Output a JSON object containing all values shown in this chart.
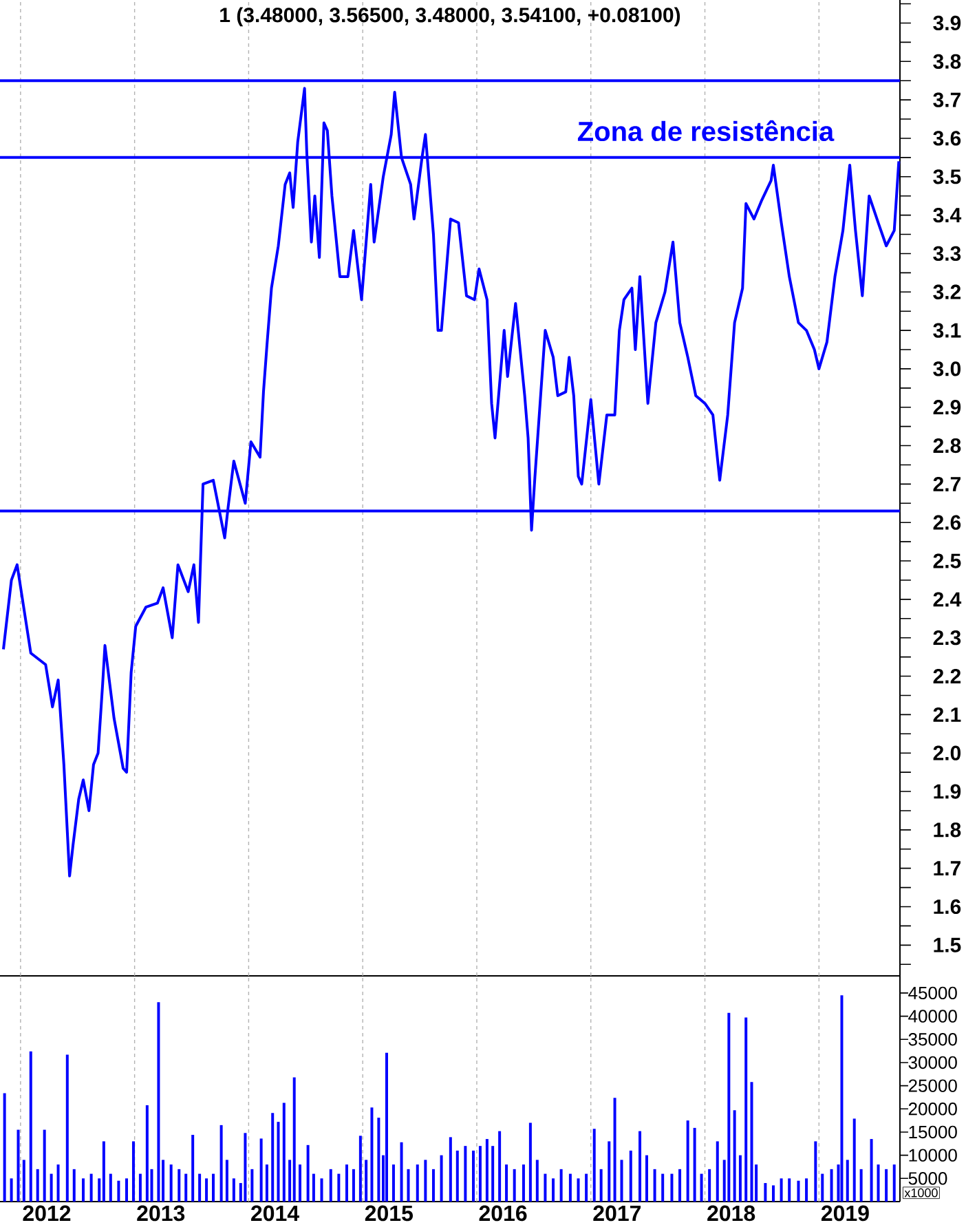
{
  "chart_data": [
    {
      "type": "line",
      "title": "1 (3.48000, 3.56500, 3.48000, 3.54100, +0.08100)",
      "x": [
        2011.85,
        2011.92,
        2011.97,
        2012.09,
        2012.22,
        2012.28,
        2012.33,
        2012.38,
        2012.43,
        2012.46,
        2012.51,
        2012.55,
        2012.6,
        2012.64,
        2012.68,
        2012.72,
        2012.74,
        2012.82,
        2012.9,
        2012.93,
        2012.97,
        2013.01,
        2013.1,
        2013.2,
        2013.25,
        2013.33,
        2013.38,
        2013.47,
        2013.52,
        2013.56,
        2013.6,
        2013.69,
        2013.79,
        2013.82,
        2013.87,
        2013.97,
        2014.02,
        2014.1,
        2014.13,
        2014.16,
        2014.2,
        2014.26,
        2014.32,
        2014.36,
        2014.39,
        2014.43,
        2014.49,
        2014.51,
        2014.55,
        2014.58,
        2014.62,
        2014.66,
        2014.69,
        2014.73,
        2014.8,
        2014.87,
        2014.92,
        2014.99,
        2015.07,
        2015.1,
        2015.18,
        2015.25,
        2015.28,
        2015.34,
        2015.42,
        2015.45,
        2015.52,
        2015.55,
        2015.62,
        2015.66,
        2015.69,
        2015.77,
        2015.84,
        2015.91,
        2015.98,
        2016.02,
        2016.09,
        2016.13,
        2016.16,
        2016.24,
        2016.27,
        2016.34,
        2016.42,
        2016.45,
        2016.48,
        2016.51,
        2016.6,
        2016.67,
        2016.71,
        2016.78,
        2016.81,
        2016.85,
        2016.89,
        2016.92,
        2017.0,
        2017.07,
        2017.14,
        2017.21,
        2017.25,
        2017.29,
        2017.36,
        2017.39,
        2017.43,
        2017.5,
        2017.57,
        2017.65,
        2017.72,
        2017.78,
        2017.85,
        2017.92,
        2018.0,
        2018.07,
        2018.13,
        2018.2,
        2018.26,
        2018.33,
        2018.36,
        2018.43,
        2018.5,
        2018.58,
        2018.6,
        2018.67,
        2018.74,
        2018.82,
        2018.89,
        2018.96,
        2019.0,
        2019.07,
        2019.14,
        2019.21,
        2019.27,
        2019.32,
        2019.38,
        2019.44,
        2019.52,
        2019.59,
        2019.66,
        2019.7
      ],
      "values": [
        2.27,
        2.45,
        2.49,
        2.26,
        2.23,
        2.12,
        2.19,
        1.97,
        1.68,
        1.76,
        1.88,
        1.93,
        1.85,
        1.97,
        2.0,
        2.18,
        2.28,
        2.09,
        1.96,
        1.95,
        2.21,
        2.33,
        2.38,
        2.39,
        2.43,
        2.3,
        2.49,
        2.42,
        2.49,
        2.34,
        2.7,
        2.71,
        2.56,
        2.64,
        2.76,
        2.65,
        2.81,
        2.77,
        2.94,
        3.06,
        3.21,
        3.32,
        3.48,
        3.51,
        3.42,
        3.59,
        3.73,
        3.56,
        3.33,
        3.45,
        3.29,
        3.64,
        3.62,
        3.45,
        3.24,
        3.24,
        3.36,
        3.18,
        3.48,
        3.33,
        3.5,
        3.61,
        3.72,
        3.55,
        3.48,
        3.39,
        3.55,
        3.61,
        3.35,
        3.1,
        3.1,
        3.39,
        3.38,
        3.19,
        3.18,
        3.26,
        3.18,
        2.91,
        2.82,
        3.1,
        2.98,
        3.17,
        2.93,
        2.82,
        2.58,
        2.72,
        3.1,
        3.03,
        2.93,
        2.94,
        3.03,
        2.93,
        2.72,
        2.7,
        2.92,
        2.7,
        2.88,
        2.88,
        3.1,
        3.18,
        3.21,
        3.05,
        3.24,
        2.91,
        3.12,
        3.2,
        3.33,
        3.12,
        3.03,
        2.93,
        2.91,
        2.88,
        2.71,
        2.88,
        3.12,
        3.21,
        3.43,
        3.39,
        3.44,
        3.49,
        3.53,
        3.38,
        3.24,
        3.12,
        3.1,
        3.05,
        3.0,
        3.07,
        3.24,
        3.36,
        3.53,
        3.36,
        3.19,
        3.45,
        3.38,
        3.32,
        3.36,
        3.54
      ],
      "color": "#0000ff",
      "xlim": [
        2011.82,
        2019.71
      ],
      "xticks": [
        {
          "value": 2012,
          "label": null
        },
        {
          "value": 2013,
          "label": null
        },
        {
          "value": 2014,
          "label": null
        },
        {
          "value": 2015,
          "label": null
        },
        {
          "value": 2016,
          "label": null
        },
        {
          "value": 2017,
          "label": null
        },
        {
          "value": 2018,
          "label": null
        },
        {
          "value": 2019,
          "label": null
        }
      ],
      "ylim": [
        1.42,
        3.96
      ],
      "yticks": [
        {
          "value": 1.45,
          "label": null
        },
        1.5,
        {
          "value": 1.55,
          "label": null
        },
        1.6,
        {
          "value": 1.65,
          "label": null
        },
        1.7,
        {
          "value": 1.75,
          "label": null
        },
        1.8,
        {
          "value": 1.85,
          "label": null
        },
        1.9,
        {
          "value": 1.95,
          "label": null
        },
        {
          "value": 2,
          "label": "2.0"
        },
        {
          "value": 2.05,
          "label": null
        },
        2.1,
        {
          "value": 2.15,
          "label": null
        },
        2.2,
        {
          "value": 2.25,
          "label": null
        },
        2.3,
        {
          "value": 2.35,
          "label": null
        },
        2.4,
        {
          "value": 2.45,
          "label": null
        },
        2.5,
        {
          "value": 2.55,
          "label": null
        },
        2.6,
        {
          "value": 2.65,
          "label": null
        },
        2.7,
        {
          "value": 2.75,
          "label": null
        },
        2.8,
        {
          "value": 2.85,
          "label": null
        },
        2.9,
        {
          "value": 2.95,
          "label": null
        },
        {
          "value": 3,
          "label": "3.0"
        },
        {
          "value": 3.05,
          "label": null
        },
        3.1,
        {
          "value": 3.15,
          "label": null
        },
        3.2,
        {
          "value": 3.25,
          "label": null
        },
        3.3,
        {
          "value": 3.35,
          "label": null
        },
        3.4,
        {
          "value": 3.45,
          "label": null
        },
        3.5,
        {
          "value": 3.55,
          "label": null
        },
        3.6,
        {
          "value": 3.65,
          "label": null
        },
        3.7,
        {
          "value": 3.75,
          "label": null
        },
        3.8,
        {
          "value": 3.85,
          "label": null
        },
        3.9,
        {
          "value": 3.95,
          "label": null
        }
      ],
      "grid": "x",
      "tick_labels": "y",
      "ref_lines": [
        {
          "axis": "y",
          "value": 3.75,
          "color": "#0000ff"
        },
        {
          "axis": "y",
          "value": 3.55,
          "color": "#0000ff"
        },
        {
          "axis": "y",
          "value": 2.63,
          "color": "#0000ff"
        }
      ],
      "annotations": [
        "Zona de resistência"
      ]
    },
    {
      "type": "bar",
      "ylabel": "x1000",
      "x": [
        2011.86,
        2011.92,
        2011.98,
        2012.03,
        2012.09,
        2012.15,
        2012.21,
        2012.27,
        2012.33,
        2012.41,
        2012.47,
        2012.55,
        2012.62,
        2012.69,
        2012.73,
        2012.79,
        2012.86,
        2012.93,
        2012.99,
        2013.05,
        2013.11,
        2013.15,
        2013.21,
        2013.25,
        2013.32,
        2013.39,
        2013.45,
        2013.51,
        2013.57,
        2013.63,
        2013.69,
        2013.76,
        2013.81,
        2013.87,
        2013.93,
        2013.97,
        2014.03,
        2014.11,
        2014.16,
        2014.21,
        2014.26,
        2014.31,
        2014.36,
        2014.4,
        2014.45,
        2014.52,
        2014.57,
        2014.64,
        2014.72,
        2014.79,
        2014.86,
        2014.92,
        2014.98,
        2015.03,
        2015.08,
        2015.14,
        2015.18,
        2015.21,
        2015.27,
        2015.34,
        2015.4,
        2015.48,
        2015.55,
        2015.62,
        2015.69,
        2015.77,
        2015.83,
        2015.9,
        2015.97,
        2016.03,
        2016.09,
        2016.14,
        2016.2,
        2016.26,
        2016.33,
        2016.41,
        2016.47,
        2016.53,
        2016.6,
        2016.67,
        2016.74,
        2016.82,
        2016.89,
        2016.96,
        2017.03,
        2017.09,
        2017.16,
        2017.21,
        2017.27,
        2017.35,
        2017.43,
        2017.49,
        2017.56,
        2017.63,
        2017.71,
        2017.78,
        2017.85,
        2017.91,
        2017.97,
        2018.04,
        2018.11,
        2018.17,
        2018.21,
        2018.26,
        2018.31,
        2018.36,
        2018.41,
        2018.45,
        2018.53,
        2018.6,
        2018.67,
        2018.74,
        2018.82,
        2018.89,
        2018.97,
        2019.03,
        2019.11,
        2019.17,
        2019.2,
        2019.25,
        2019.31,
        2019.37,
        2019.46,
        2019.52,
        2019.59,
        2019.66
      ],
      "values": [
        23400,
        5000,
        15500,
        9000,
        32400,
        7000,
        15500,
        6000,
        8000,
        31700,
        7000,
        5000,
        6000,
        5000,
        13000,
        6000,
        4500,
        5000,
        13000,
        6000,
        20800,
        7000,
        43000,
        9000,
        8000,
        7000,
        6000,
        14400,
        6000,
        5000,
        6000,
        16500,
        9000,
        5000,
        4000,
        14800,
        7000,
        13600,
        8000,
        19100,
        17200,
        21300,
        9000,
        26800,
        8000,
        12200,
        6000,
        5000,
        7000,
        6000,
        8000,
        7000,
        14200,
        9000,
        20300,
        18100,
        10000,
        32100,
        8000,
        12800,
        7000,
        8000,
        9000,
        7000,
        10000,
        13900,
        11000,
        12000,
        11000,
        12000,
        13500,
        12000,
        15200,
        8000,
        7000,
        8000,
        17000,
        9000,
        6000,
        5000,
        7000,
        6000,
        5000,
        6000,
        15700,
        7000,
        13000,
        22400,
        9000,
        11000,
        15200,
        10000,
        7000,
        6000,
        6000,
        7000,
        17500,
        15900,
        6000,
        7000,
        13000,
        9000,
        40700,
        19700,
        10000,
        39700,
        25800,
        8000,
        4000,
        3500,
        5000,
        5000,
        4500,
        5000,
        13000,
        6000,
        7000,
        8000,
        44500,
        9000,
        17900,
        7000,
        13500,
        8000,
        7000,
        8000
      ],
      "color": "#0000ff",
      "xlim": [
        2011.82,
        2019.71
      ],
      "xticks": [
        {
          "value": 2012,
          "label": null
        },
        {
          "value": 2012.23,
          "label": "2012"
        },
        {
          "value": 2013,
          "label": null
        },
        {
          "value": 2013.23,
          "label": "2013"
        },
        {
          "value": 2014,
          "label": null
        },
        {
          "value": 2014.23,
          "label": "2014"
        },
        {
          "value": 2015,
          "label": null
        },
        {
          "value": 2015.23,
          "label": "2015"
        },
        {
          "value": 2016,
          "label": null
        },
        {
          "value": 2016.23,
          "label": "2016"
        },
        {
          "value": 2017,
          "label": null
        },
        {
          "value": 2017.23,
          "label": "2017"
        },
        {
          "value": 2018,
          "label": null
        },
        {
          "value": 2018.23,
          "label": "2018"
        },
        {
          "value": 2019,
          "label": null
        },
        {
          "value": 2019.23,
          "label": "2019"
        }
      ],
      "ylim": [
        0,
        48700
      ],
      "yticks": [
        5000,
        10000,
        15000,
        20000,
        25000,
        30000,
        35000,
        40000,
        45000
      ],
      "grid": "x"
    }
  ]
}
